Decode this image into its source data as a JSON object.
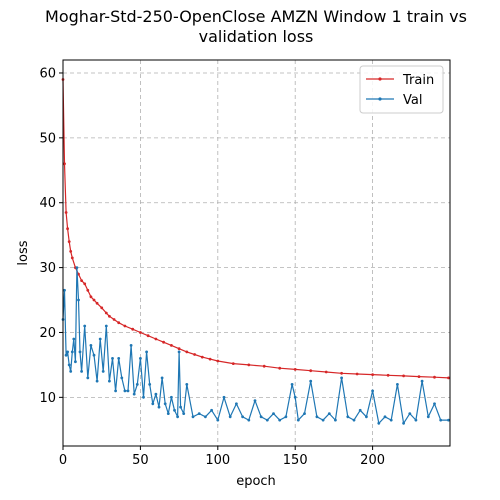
{
  "chart_data": {
    "type": "line",
    "title": "Moghar-Std-250-OpenClose AMZN Window 1 train vs validation loss",
    "title_lines": [
      "Moghar-Std-250-OpenClose AMZN Window 1 train vs",
      "validation loss"
    ],
    "xlabel": "epoch",
    "ylabel": "loss",
    "xlim": [
      0,
      250
    ],
    "ylim": [
      2.5,
      62
    ],
    "xticks": [
      0,
      50,
      100,
      150,
      200
    ],
    "yticks": [
      10,
      20,
      30,
      40,
      50,
      60
    ],
    "grid": true,
    "legend": "top-right",
    "colors": {
      "train": "#d62728",
      "val": "#1f77b4"
    },
    "series": [
      {
        "name": "Train",
        "key": "train",
        "x": [
          0,
          1,
          2,
          3,
          4,
          5,
          6,
          8,
          10,
          12,
          14,
          16,
          18,
          20,
          22,
          25,
          28,
          30,
          33,
          36,
          40,
          45,
          50,
          55,
          60,
          65,
          70,
          75,
          80,
          85,
          90,
          95,
          100,
          110,
          120,
          130,
          140,
          150,
          160,
          170,
          180,
          190,
          200,
          210,
          220,
          230,
          240,
          249
        ],
        "values": [
          59.0,
          46.0,
          38.5,
          36.0,
          34.0,
          32.5,
          31.5,
          30.0,
          29.0,
          28.0,
          27.5,
          26.5,
          25.5,
          25.0,
          24.5,
          23.8,
          23.0,
          22.5,
          22.0,
          21.5,
          21.0,
          20.5,
          20.0,
          19.5,
          19.0,
          18.5,
          18.0,
          17.5,
          17.0,
          16.6,
          16.2,
          15.9,
          15.6,
          15.2,
          15.0,
          14.8,
          14.5,
          14.3,
          14.1,
          13.9,
          13.7,
          13.6,
          13.5,
          13.4,
          13.3,
          13.2,
          13.1,
          13.0
        ]
      },
      {
        "name": "Val",
        "key": "val",
        "x": [
          0,
          1,
          2,
          3,
          4,
          5,
          6,
          7,
          8,
          9,
          10,
          11,
          12,
          14,
          16,
          18,
          20,
          22,
          24,
          26,
          28,
          30,
          32,
          34,
          36,
          38,
          40,
          42,
          44,
          46,
          48,
          50,
          52,
          54,
          56,
          58,
          60,
          62,
          64,
          66,
          68,
          70,
          72,
          74,
          75,
          76,
          78,
          80,
          84,
          88,
          92,
          96,
          100,
          104,
          108,
          112,
          116,
          120,
          124,
          128,
          132,
          136,
          140,
          144,
          148,
          150,
          152,
          156,
          160,
          164,
          168,
          172,
          176,
          180,
          184,
          188,
          192,
          196,
          200,
          204,
          208,
          212,
          216,
          220,
          224,
          228,
          232,
          236,
          240,
          244,
          249
        ],
        "values": [
          22.0,
          26.5,
          16.5,
          17.0,
          15.0,
          14.0,
          17.0,
          19.0,
          15.5,
          30.0,
          25.0,
          17.0,
          14.0,
          21.0,
          13.0,
          18.0,
          16.5,
          12.5,
          19.0,
          14.0,
          21.0,
          12.5,
          16.0,
          11.0,
          16.0,
          13.0,
          11.0,
          11.0,
          18.0,
          10.5,
          12.0,
          16.0,
          10.0,
          17.0,
          12.0,
          9.0,
          10.5,
          8.5,
          13.0,
          9.0,
          7.5,
          10.0,
          8.0,
          7.0,
          17.0,
          8.5,
          7.5,
          12.0,
          7.0,
          7.5,
          7.0,
          8.0,
          6.5,
          10.0,
          7.0,
          9.0,
          7.0,
          6.5,
          9.5,
          7.0,
          6.5,
          7.5,
          6.5,
          7.0,
          12.0,
          10.0,
          6.5,
          7.5,
          12.5,
          7.0,
          6.5,
          7.5,
          6.5,
          13.0,
          7.0,
          6.5,
          8.0,
          7.0,
          11.0,
          6.0,
          7.0,
          6.5,
          12.0,
          6.0,
          7.5,
          6.5,
          12.5,
          7.0,
          9.0,
          6.5,
          6.5
        ]
      }
    ]
  }
}
